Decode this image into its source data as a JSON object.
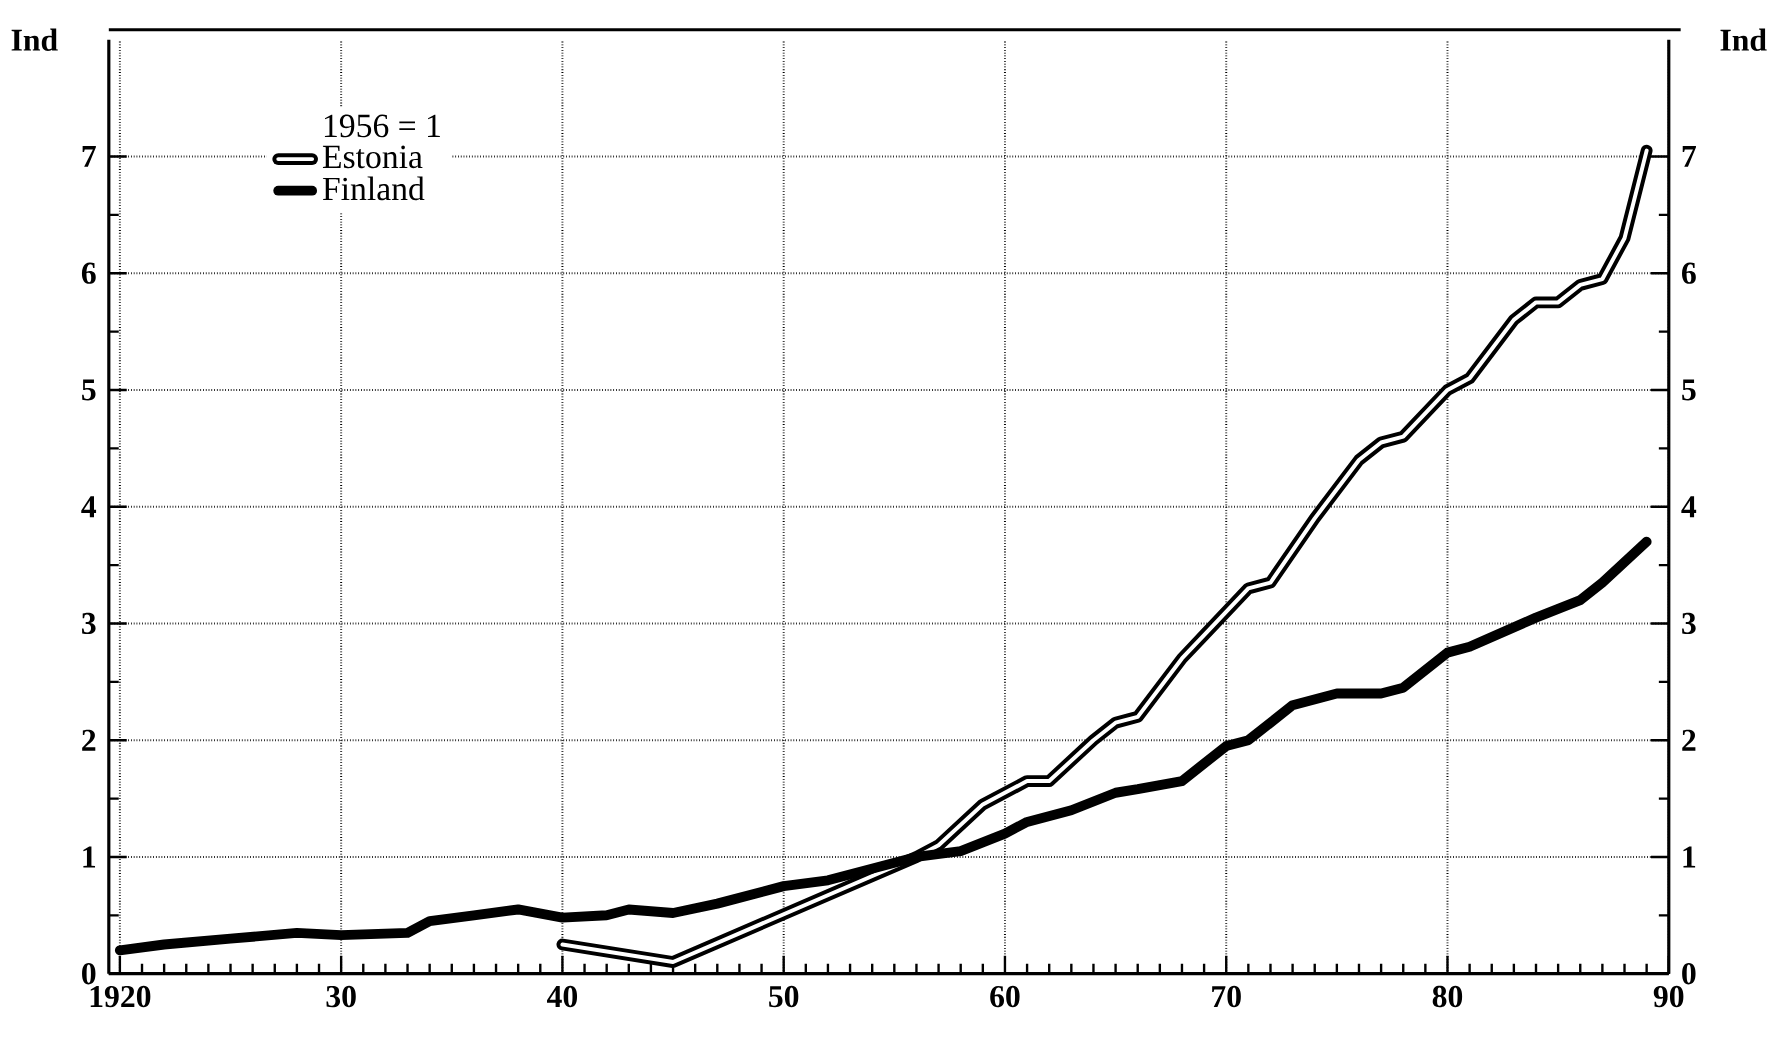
{
  "chart_data": {
    "type": "line",
    "ylabel": "Ind",
    "y2label": "Ind",
    "legend_title": "1956 = 1",
    "xlim": [
      1919.5,
      1990
    ],
    "ylim": [
      0,
      8
    ],
    "y2lim": [
      0,
      8
    ],
    "xticks": [
      {
        "value": 1920,
        "label": "1920"
      },
      {
        "value": 1930,
        "label": "30"
      },
      {
        "value": 1940,
        "label": "40"
      },
      {
        "value": 1950,
        "label": "50"
      },
      {
        "value": 1960,
        "label": "60"
      },
      {
        "value": 1970,
        "label": "70"
      },
      {
        "value": 1980,
        "label": "80"
      },
      {
        "value": 1990,
        "label": "90"
      }
    ],
    "yticks": [
      0,
      1,
      2,
      3,
      4,
      5,
      6,
      7
    ],
    "y2ticks": [
      0,
      1,
      2,
      3,
      4,
      5,
      6,
      7
    ],
    "grid": true,
    "legend": "top left",
    "line_style": "solid",
    "series": [
      {
        "name": "Estonia",
        "color": "#000000",
        "x": [
          1940,
          1945,
          1956,
          1957,
          1959,
          1961,
          1962,
          1964,
          1965,
          1966,
          1968,
          1969,
          1971,
          1972,
          1974,
          1976,
          1977,
          1978,
          1980,
          1981,
          1983,
          1984,
          1985,
          1986,
          1987,
          1988,
          1989
        ],
        "values": [
          0.25,
          0.1,
          1.0,
          1.1,
          1.45,
          1.65,
          1.65,
          2.0,
          2.15,
          2.2,
          2.7,
          2.9,
          3.3,
          3.35,
          3.9,
          4.4,
          4.55,
          4.6,
          5.0,
          5.1,
          5.6,
          5.75,
          5.75,
          5.9,
          5.95,
          6.3,
          7.05
        ]
      },
      {
        "name": "Finland",
        "color": "#000000",
        "x": [
          1920,
          1922,
          1925,
          1928,
          1930,
          1933,
          1934,
          1936,
          1938,
          1940,
          1942,
          1943,
          1945,
          1947,
          1950,
          1952,
          1954,
          1956,
          1958,
          1960,
          1961,
          1963,
          1965,
          1966,
          1968,
          1970,
          1971,
          1973,
          1975,
          1977,
          1978,
          1980,
          1981,
          1984,
          1986,
          1987,
          1989
        ],
        "values": [
          0.2,
          0.25,
          0.3,
          0.35,
          0.33,
          0.35,
          0.45,
          0.5,
          0.55,
          0.48,
          0.5,
          0.55,
          0.52,
          0.6,
          0.75,
          0.8,
          0.9,
          1.0,
          1.05,
          1.2,
          1.3,
          1.4,
          1.55,
          1.58,
          1.65,
          1.95,
          2.0,
          2.3,
          2.4,
          2.4,
          2.45,
          2.75,
          2.8,
          3.05,
          3.2,
          3.35,
          3.7
        ]
      }
    ]
  }
}
